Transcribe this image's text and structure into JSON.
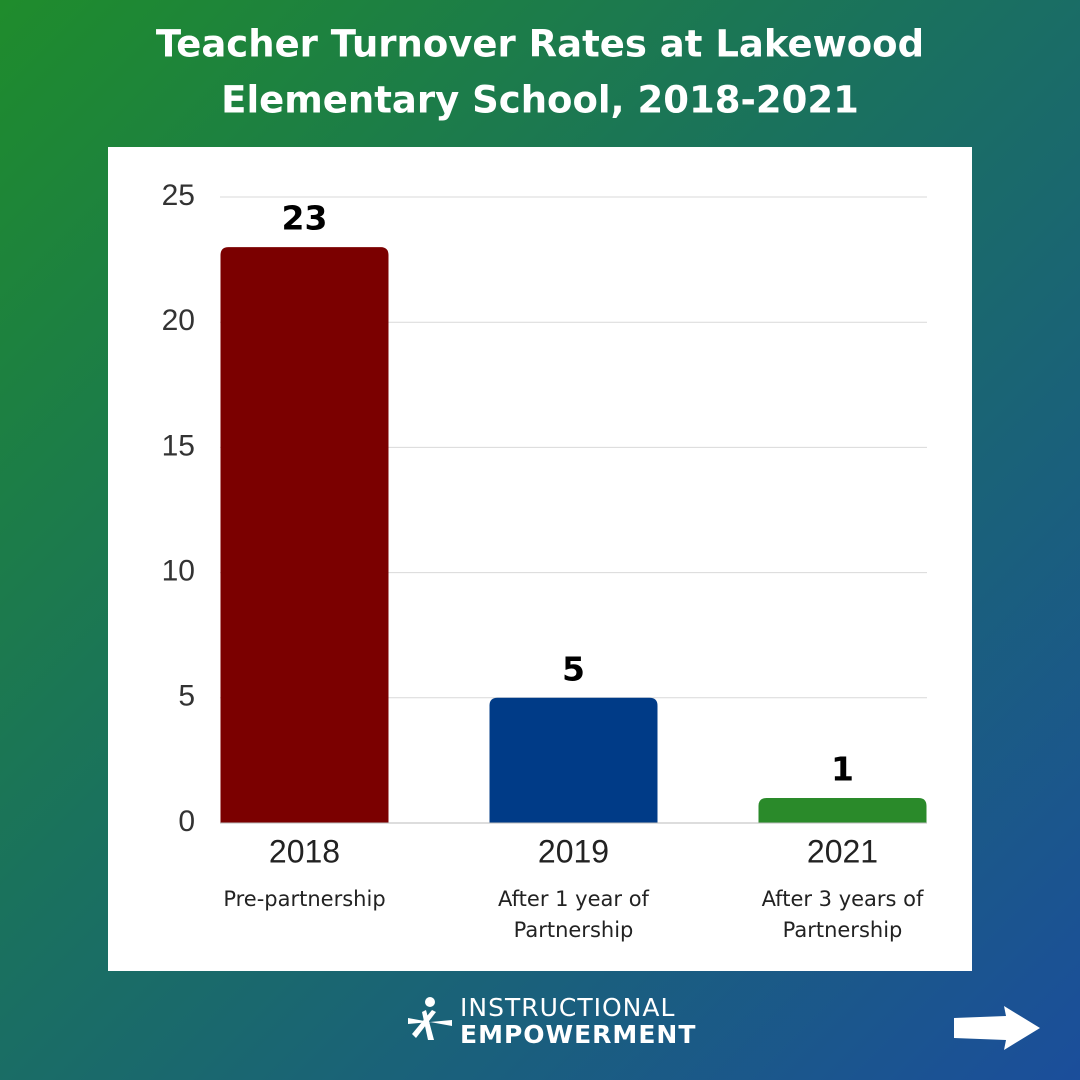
{
  "chart_data": {
    "type": "bar",
    "title": [
      "Teacher Turnover Rates at Lakewood",
      "Elementary School, 2018-2021"
    ],
    "categories": [
      "2018",
      "2019",
      "2021"
    ],
    "category_notes": [
      [
        "Pre-partnership"
      ],
      [
        "After 1 year of",
        "Partnership"
      ],
      [
        "After 3 years of",
        "Partnership"
      ]
    ],
    "values": [
      23,
      5,
      1
    ],
    "colors": [
      "#7b0000",
      "#003b87",
      "#2a8a2a"
    ],
    "ylim": [
      0,
      25
    ],
    "yticks": [
      0,
      5,
      10,
      15,
      20,
      25
    ],
    "grid": true
  },
  "logo": {
    "line1": "INSTRUCTIONAL",
    "line2": "EMPOWERMENT"
  }
}
